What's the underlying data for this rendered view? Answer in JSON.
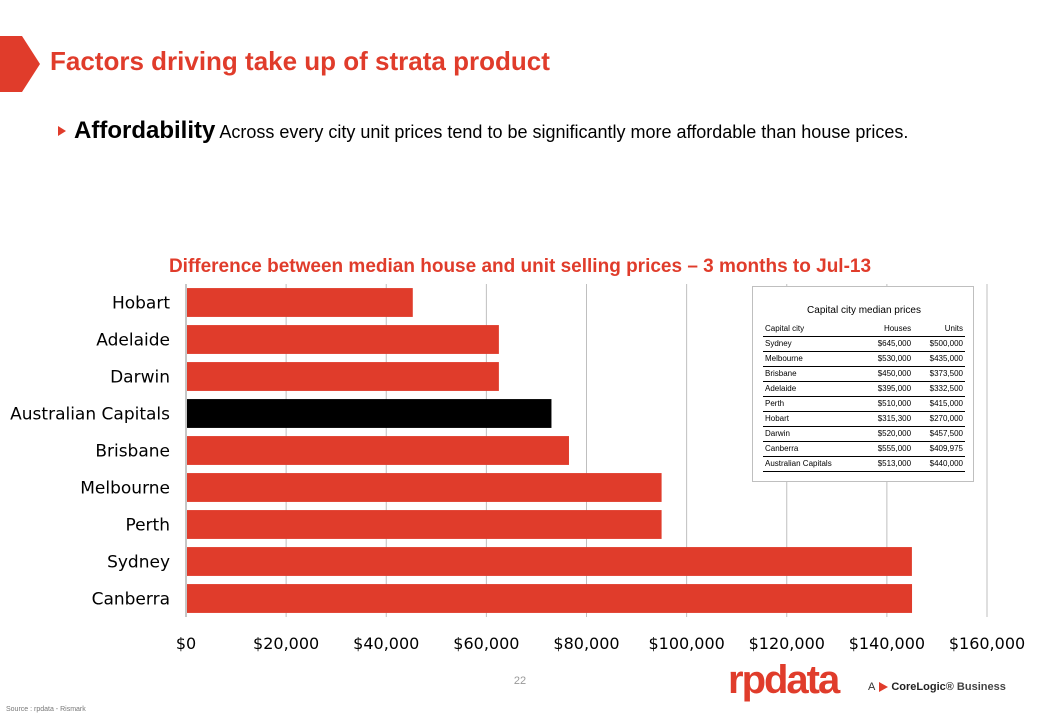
{
  "slide": {
    "title": "Factors driving take up of strata product",
    "bullet_head": "Affordability",
    "bullet_body": " Across every city unit prices tend to be significantly more affordable than house prices.",
    "page_number": "22",
    "source": "Source : rpdata - Rismark",
    "logo_text": "rpdata",
    "corelogic_a": "A",
    "corelogic_name": "CoreLogic",
    "corelogic_rest": "® Business",
    "accent_color": "#e03c2b"
  },
  "chart_data": {
    "type": "bar",
    "orientation": "horizontal",
    "title": "Difference between median house and unit selling prices – 3 months to Jul-13",
    "categories": [
      "Hobart",
      "Adelaide",
      "Darwin",
      "Australian Capitals",
      "Brisbane",
      "Melbourne",
      "Perth",
      "Sydney",
      "Canberra"
    ],
    "values": [
      45300,
      62500,
      62500,
      73000,
      76500,
      95000,
      95000,
      145000,
      145025
    ],
    "highlight": "Australian Capitals",
    "bar_color": "#e03c2b",
    "highlight_color": "#000000",
    "xlim": [
      0,
      160000
    ],
    "xticks": [
      0,
      20000,
      40000,
      60000,
      80000,
      100000,
      120000,
      140000,
      160000
    ],
    "xtick_labels": [
      "$0",
      "$20,000",
      "$40,000",
      "$60,000",
      "$80,000",
      "$100,000",
      "$120,000",
      "$140,000",
      "$160,000"
    ],
    "grid": true
  },
  "inset_table": {
    "title": "Capital city median prices",
    "headers": [
      "Capital city",
      "Houses",
      "Units"
    ],
    "rows": [
      [
        "Sydney",
        "$645,000",
        "$500,000"
      ],
      [
        "Melbourne",
        "$530,000",
        "$435,000"
      ],
      [
        "Brisbane",
        "$450,000",
        "$373,500"
      ],
      [
        "Adelaide",
        "$395,000",
        "$332,500"
      ],
      [
        "Perth",
        "$510,000",
        "$415,000"
      ],
      [
        "Hobart",
        "$315,300",
        "$270,000"
      ],
      [
        "Darwin",
        "$520,000",
        "$457,500"
      ],
      [
        "Canberra",
        "$555,000",
        "$409,975"
      ],
      [
        "Australian Capitals",
        "$513,000",
        "$440,000"
      ]
    ]
  }
}
